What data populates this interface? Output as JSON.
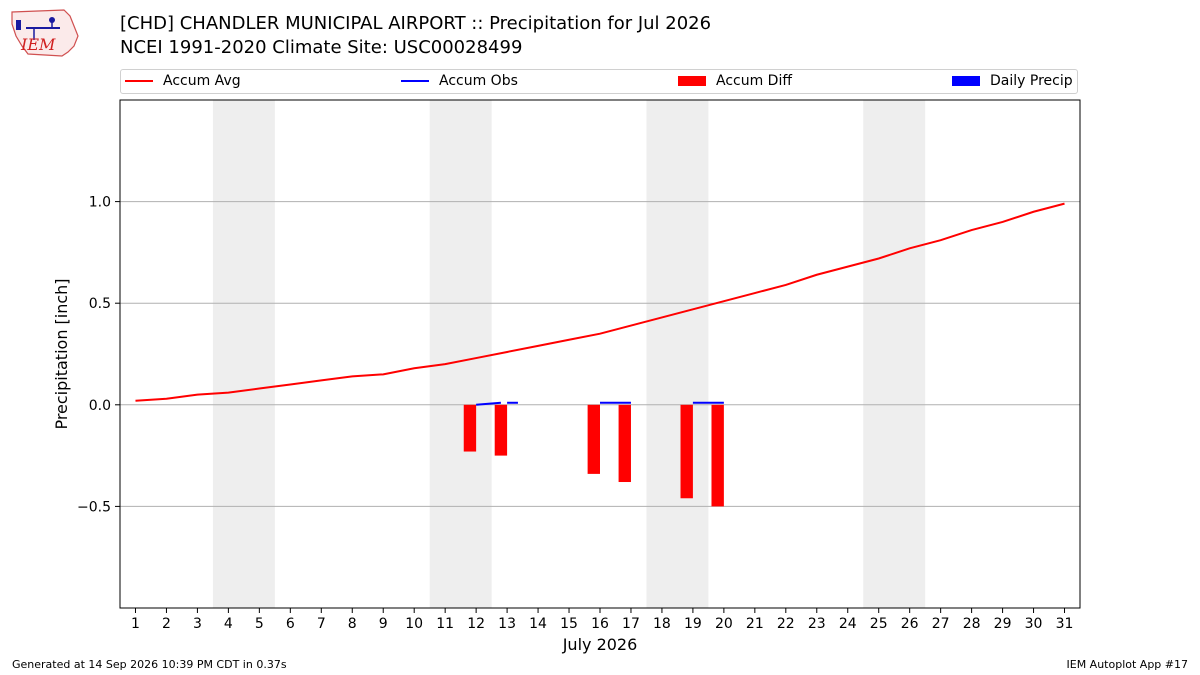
{
  "header": {
    "logo_text": "IEM",
    "title_line1": "[CHD] CHANDLER MUNICIPAL AIRPORT :: Precipitation for Jul 2026",
    "title_line2": "NCEI 1991-2020 Climate Site: USC00028499"
  },
  "footer": {
    "generated": "Generated at 14 Sep 2026 10:39 PM CDT in 0.37s",
    "app": "IEM Autoplot App #17"
  },
  "colors": {
    "accum_avg": "#ff0000",
    "accum_obs": "#0000ff",
    "accum_diff": "#ff0000",
    "daily_precip": "#0000ff",
    "weekend_shade": "#eeeeee",
    "grid": "#b0b0b0"
  },
  "chart_data": {
    "type": "bar",
    "xlabel": "July 2026",
    "ylabel": "Precipitation [inch]",
    "xlim": [
      0.5,
      31.5
    ],
    "ylim": [
      -1.0,
      1.5
    ],
    "yticks": [
      -0.5,
      0.0,
      0.5,
      1.0
    ],
    "ytick_labels": [
      "−0.5",
      "0.0",
      "0.5",
      "1.0"
    ],
    "xticks": [
      1,
      2,
      3,
      4,
      5,
      6,
      7,
      8,
      9,
      10,
      11,
      12,
      13,
      14,
      15,
      16,
      17,
      18,
      19,
      20,
      21,
      22,
      23,
      24,
      25,
      26,
      27,
      28,
      29,
      30,
      31
    ],
    "grid": "horizontal",
    "legend_position": "top",
    "legend": [
      "Accum Avg",
      "Accum Obs",
      "Accum Diff",
      "Daily Precip"
    ],
    "weekend_shading": [
      [
        3.5,
        5.5
      ],
      [
        10.5,
        12.5
      ],
      [
        17.5,
        19.5
      ],
      [
        24.5,
        26.5
      ]
    ],
    "series": [
      {
        "name": "Accum Avg",
        "kind": "line",
        "x": [
          1,
          2,
          3,
          4,
          5,
          6,
          7,
          8,
          9,
          10,
          11,
          12,
          13,
          14,
          15,
          16,
          17,
          18,
          19,
          20,
          21,
          22,
          23,
          24,
          25,
          26,
          27,
          28,
          29,
          30,
          31
        ],
        "values": [
          0.02,
          0.03,
          0.05,
          0.06,
          0.08,
          0.1,
          0.12,
          0.14,
          0.15,
          0.18,
          0.2,
          0.23,
          0.26,
          0.29,
          0.32,
          0.35,
          0.39,
          0.43,
          0.47,
          0.51,
          0.55,
          0.59,
          0.64,
          0.68,
          0.72,
          0.77,
          0.81,
          0.86,
          0.9,
          0.95,
          0.99
        ]
      },
      {
        "name": "Accum Obs",
        "kind": "step",
        "segments": [
          {
            "x": [
              12,
              12.8
            ],
            "values": [
              0.0,
              0.01
            ]
          },
          {
            "x": [
              13,
              13.35
            ],
            "values": [
              0.01,
              0.01
            ]
          },
          {
            "x": [
              16,
              17
            ],
            "values": [
              0.01,
              0.01
            ]
          },
          {
            "x": [
              19,
              20
            ],
            "values": [
              0.01,
              0.01
            ]
          }
        ]
      },
      {
        "name": "Accum Diff",
        "kind": "bar",
        "x": [
          11.8,
          12.8,
          15.8,
          16.8,
          18.8,
          19.8
        ],
        "values": [
          -0.23,
          -0.25,
          -0.34,
          -0.38,
          -0.46,
          -0.5
        ]
      },
      {
        "name": "Daily Precip",
        "kind": "bar",
        "x": [],
        "values": []
      }
    ]
  }
}
